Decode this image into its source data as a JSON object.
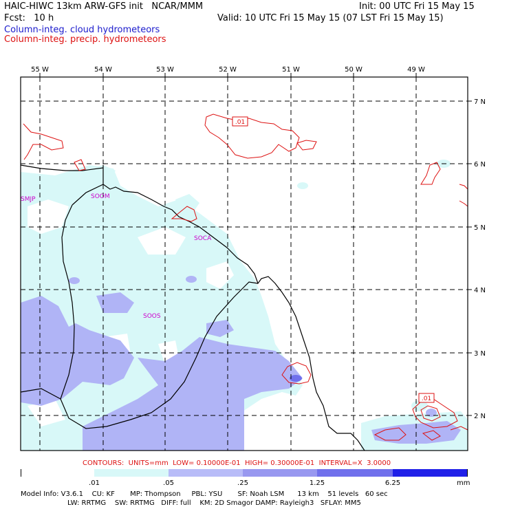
{
  "header": {
    "title_left": "HAIC-HIWC 13km ARW-GFS init   NCAR/MMM",
    "fcst": "Fcst:   10 h",
    "init": "Init: 00 UTC Fri 15 May 15",
    "valid": "Valid: 10 UTC Fri 15 May 15 (07 LST Fri 15 May 15)",
    "legend_cloud": "Column-integ. cloud hydrometeors",
    "legend_precip": "Column-integ. precip. hydrometeors"
  },
  "map": {
    "lon_labels": [
      "55 W",
      "54 W",
      "53 W",
      "52 W",
      "51 W",
      "50 W",
      "49 W"
    ],
    "lat_labels": [
      "7 N",
      "6 N",
      "5 N",
      "4 N",
      "3 N",
      "2 N"
    ],
    "stations": [
      {
        "id": "SMJP",
        "lon": -55.3,
        "lat": 5.45
      },
      {
        "id": "SOOM",
        "lon": -54.1,
        "lat": 5.5
      },
      {
        "id": "SOCA",
        "lon": -52.4,
        "lat": 4.8
      },
      {
        "id": "SOOS",
        "lon": -53.2,
        "lat": 3.6
      }
    ],
    "contour_labels": [
      {
        "text": ".01",
        "lon": -52.0,
        "lat": 6.75
      },
      {
        "text": ".01",
        "lon": -49.0,
        "lat": 2.15
      }
    ],
    "colors": {
      "precip_contour": "#dd1111",
      "station_text": "#cc00cc",
      "coast": "#000000",
      "grid": "#000000"
    }
  },
  "contours_info": "CONTOURS:  UNITS=mm  LOW= 0.10000E-01  HIGH= 0.30000E-01  INTERVAL=X  3.0000",
  "colorbar": {
    "labels": [
      ".01",
      ".05",
      ".25",
      "1.25",
      "6.25"
    ],
    "unit": "mm",
    "colors": [
      "#ffffff",
      "#d8f8f8",
      "#b8bcf8",
      "#9898f0",
      "#7070ec",
      "#2020e8"
    ]
  },
  "model_info": {
    "line1": "Model Info: V3.6.1    CU: KF       MP: Thompson     PBL: YSU       SF: Noah LSM      13 km    51 levels   60 sec",
    "line2": "LW: RRTMG    SW: RRTMG   DIFF: full    KM: 2D Smagor DAMP: Rayleigh3   SFLAY: MM5"
  }
}
